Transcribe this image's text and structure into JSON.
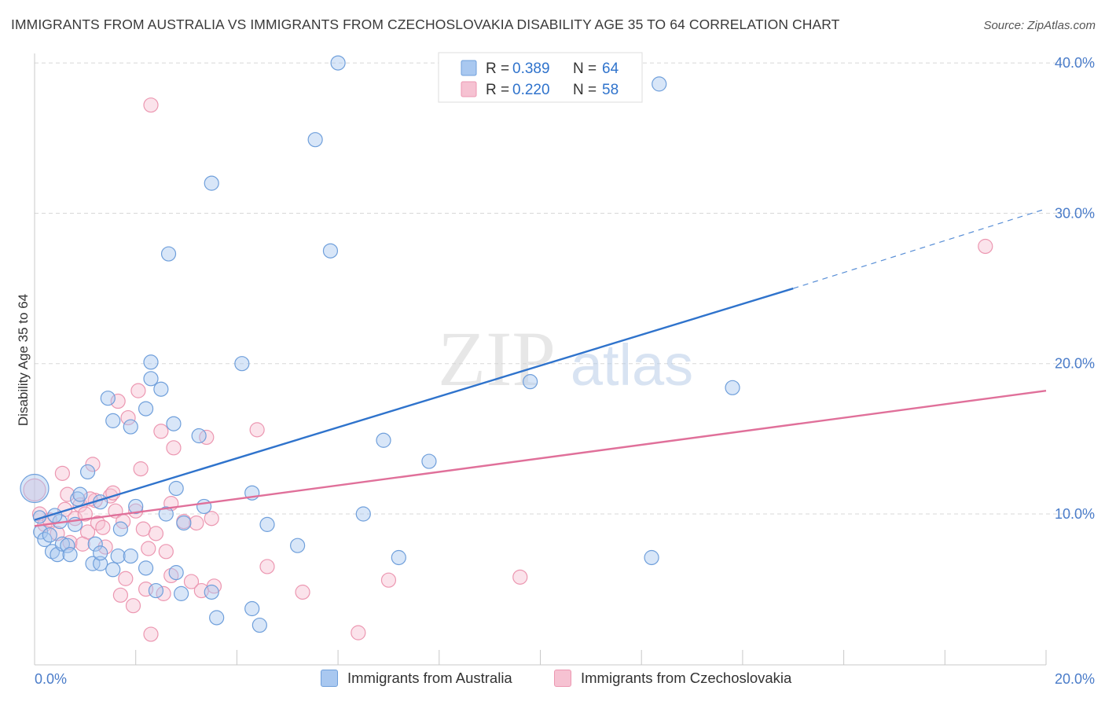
{
  "title": "IMMIGRANTS FROM AUSTRALIA VS IMMIGRANTS FROM CZECHOSLOVAKIA DISABILITY AGE 35 TO 64 CORRELATION CHART",
  "source": "Source: ZipAtlas.com",
  "watermark": {
    "zip": "ZIP",
    "atlas": "atlas"
  },
  "colors": {
    "blue_fill": "#a9c8f0",
    "blue_stroke": "#6f9fdb",
    "blue_line": "#2f73cc",
    "pink_fill": "#f6c2d2",
    "pink_stroke": "#ec97b1",
    "pink_line": "#e0709a",
    "tick_text": "#4a7cc9",
    "grid": "#d8d8d8"
  },
  "legend": {
    "rows": [
      {
        "r_label": "R =",
        "r_value": "0.389",
        "n_label": "N =",
        "n_value": "64",
        "series": "blue"
      },
      {
        "r_label": "R =",
        "r_value": "0.220",
        "n_label": "N =",
        "n_value": "58",
        "series": "pink"
      }
    ]
  },
  "bottom_legend": {
    "items": [
      {
        "label": "Immigrants from Australia",
        "series": "blue"
      },
      {
        "label": "Immigrants from Czechoslovakia",
        "series": "pink"
      }
    ]
  },
  "chart_data": {
    "type": "scatter",
    "title": "IMMIGRANTS FROM AUSTRALIA VS IMMIGRANTS FROM CZECHOSLOVAKIA DISABILITY AGE 35 TO 64 CORRELATION CHART",
    "xlabel": "",
    "ylabel": "Disability Age 35 to 64",
    "xlim": [
      0,
      20
    ],
    "ylim": [
      0,
      42
    ],
    "x_ticks": [
      0,
      2,
      4,
      6,
      8,
      10,
      12,
      14,
      16,
      18,
      20
    ],
    "x_tick_labels": [
      {
        "value": 0,
        "label": "0.0%"
      },
      {
        "value": 20,
        "label": "20.0%"
      }
    ],
    "y_ticks": [
      {
        "value": 10,
        "label": "10.0%"
      },
      {
        "value": 20,
        "label": "20.0%"
      },
      {
        "value": 30,
        "label": "30.0%"
      },
      {
        "value": 40,
        "label": "40.0%"
      }
    ],
    "grid": true,
    "series": [
      {
        "name": "Immigrants from Australia",
        "color": "blue",
        "r": 0.389,
        "n": 64,
        "trend": {
          "x0": 0,
          "y0": 9.6,
          "x1": 15,
          "y1": 25.0,
          "dash_to_x": 20,
          "dash_to_y": 30.3
        },
        "points": [
          [
            0.0,
            11.7,
            18
          ],
          [
            0.1,
            9.8,
            8
          ],
          [
            0.12,
            8.8,
            9
          ],
          [
            0.2,
            8.3,
            9
          ],
          [
            0.3,
            8.6,
            9
          ],
          [
            0.35,
            7.5,
            9
          ],
          [
            0.45,
            7.3,
            9
          ],
          [
            0.5,
            9.5,
            9
          ],
          [
            0.55,
            8.0,
            9
          ],
          [
            0.65,
            7.9,
            9
          ],
          [
            0.7,
            7.3,
            9
          ],
          [
            0.85,
            11.0,
            9
          ],
          [
            0.9,
            11.3,
            9
          ],
          [
            1.05,
            12.8,
            9
          ],
          [
            1.15,
            6.7,
            9
          ],
          [
            1.2,
            8.0,
            9
          ],
          [
            1.3,
            10.8,
            9
          ],
          [
            1.3,
            6.7,
            9
          ],
          [
            1.45,
            17.7,
            9
          ],
          [
            1.55,
            16.2,
            9
          ],
          [
            1.55,
            6.3,
            9
          ],
          [
            1.65,
            7.2,
            9
          ],
          [
            1.7,
            9.0,
            9
          ],
          [
            1.9,
            15.8,
            9
          ],
          [
            2.0,
            10.5,
            9
          ],
          [
            2.2,
            17.0,
            9
          ],
          [
            2.2,
            6.4,
            9
          ],
          [
            2.3,
            20.1,
            9
          ],
          [
            2.3,
            19.0,
            9
          ],
          [
            2.5,
            18.3,
            9
          ],
          [
            2.6,
            10.0,
            9
          ],
          [
            2.65,
            27.3,
            9
          ],
          [
            2.75,
            16.0,
            9
          ],
          [
            2.8,
            11.7,
            9
          ],
          [
            2.8,
            6.1,
            9
          ],
          [
            2.95,
            9.4,
            9
          ],
          [
            2.9,
            4.7,
            9
          ],
          [
            3.25,
            15.2,
            9
          ],
          [
            3.35,
            10.5,
            9
          ],
          [
            3.5,
            32.0,
            9
          ],
          [
            3.6,
            3.1,
            9
          ],
          [
            4.1,
            20.0,
            9
          ],
          [
            4.3,
            11.4,
            9
          ],
          [
            4.45,
            2.6,
            9
          ],
          [
            4.6,
            9.3,
            9
          ],
          [
            5.2,
            7.9,
            9
          ],
          [
            5.55,
            34.9,
            9
          ],
          [
            5.85,
            27.5,
            9
          ],
          [
            6.0,
            40.0,
            9
          ],
          [
            6.5,
            10.0,
            9
          ],
          [
            6.9,
            14.9,
            9
          ],
          [
            7.2,
            7.1,
            9
          ],
          [
            7.8,
            13.5,
            9
          ],
          [
            9.8,
            18.8,
            9
          ],
          [
            12.2,
            7.1,
            9
          ],
          [
            12.35,
            38.6,
            9
          ],
          [
            13.8,
            18.4,
            9
          ],
          [
            4.3,
            3.7,
            9
          ],
          [
            3.5,
            4.8,
            9
          ],
          [
            2.4,
            4.9,
            9
          ],
          [
            1.9,
            7.2,
            9
          ],
          [
            1.3,
            7.4,
            9
          ],
          [
            0.8,
            9.3,
            9
          ],
          [
            0.4,
            9.9,
            9
          ]
        ]
      },
      {
        "name": "Immigrants from Czechoslovakia",
        "color": "pink",
        "r": 0.22,
        "n": 58,
        "trend": {
          "x0": 0,
          "y0": 9.2,
          "x1": 20,
          "y1": 18.2
        },
        "points": [
          [
            0.0,
            11.6,
            14
          ],
          [
            0.1,
            10.0,
            9
          ],
          [
            0.2,
            9.3,
            9
          ],
          [
            0.3,
            9.6,
            9
          ],
          [
            0.45,
            8.7,
            9
          ],
          [
            0.55,
            12.7,
            9
          ],
          [
            0.65,
            11.3,
            9
          ],
          [
            0.7,
            8.1,
            9
          ],
          [
            0.8,
            9.7,
            9
          ],
          [
            0.9,
            10.6,
            9
          ],
          [
            1.0,
            10.0,
            9
          ],
          [
            1.05,
            8.8,
            9
          ],
          [
            1.15,
            13.3,
            9
          ],
          [
            1.2,
            10.9,
            9
          ],
          [
            1.25,
            9.4,
            9
          ],
          [
            1.35,
            9.1,
            9
          ],
          [
            1.4,
            7.8,
            9
          ],
          [
            1.5,
            11.2,
            9
          ],
          [
            1.55,
            11.4,
            9
          ],
          [
            1.6,
            10.2,
            9
          ],
          [
            1.65,
            17.5,
            9
          ],
          [
            1.7,
            4.6,
            9
          ],
          [
            1.75,
            9.5,
            9
          ],
          [
            1.8,
            5.7,
            9
          ],
          [
            1.85,
            16.4,
            9
          ],
          [
            1.95,
            3.9,
            9
          ],
          [
            2.0,
            10.2,
            9
          ],
          [
            2.05,
            18.2,
            9
          ],
          [
            2.1,
            13.0,
            9
          ],
          [
            2.15,
            9.0,
            9
          ],
          [
            2.2,
            5.0,
            9
          ],
          [
            2.25,
            7.7,
            9
          ],
          [
            2.3,
            37.2,
            9
          ],
          [
            2.3,
            2.0,
            9
          ],
          [
            2.4,
            8.7,
            9
          ],
          [
            2.5,
            15.5,
            9
          ],
          [
            2.55,
            4.7,
            9
          ],
          [
            2.6,
            7.5,
            9
          ],
          [
            2.7,
            10.7,
            9
          ],
          [
            2.75,
            14.4,
            9
          ],
          [
            2.95,
            9.5,
            9
          ],
          [
            3.1,
            5.5,
            9
          ],
          [
            3.2,
            9.4,
            9
          ],
          [
            3.4,
            15.1,
            9
          ],
          [
            3.5,
            9.7,
            9
          ],
          [
            3.55,
            5.2,
            9
          ],
          [
            4.4,
            15.6,
            9
          ],
          [
            4.6,
            6.5,
            9
          ],
          [
            5.3,
            4.8,
            9
          ],
          [
            6.4,
            2.1,
            9
          ],
          [
            7.0,
            5.6,
            9
          ],
          [
            9.6,
            5.8,
            9
          ],
          [
            18.8,
            27.8,
            9
          ],
          [
            0.6,
            10.3,
            9
          ],
          [
            0.95,
            8.0,
            9
          ],
          [
            1.1,
            11.0,
            9
          ],
          [
            2.7,
            5.9,
            9
          ],
          [
            3.3,
            4.9,
            9
          ]
        ]
      }
    ]
  }
}
